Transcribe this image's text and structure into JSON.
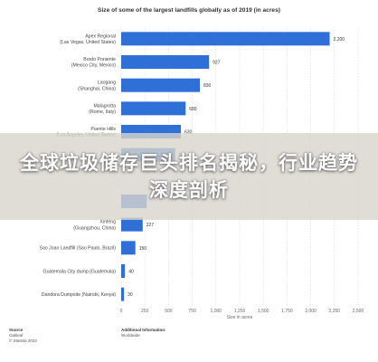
{
  "chart_data": {
    "type": "bar",
    "orientation": "horizontal",
    "title": "Size of some of the largest landfills globally as of 2019 (in acres)",
    "xlabel": "Size in acres",
    "xlim": [
      0,
      2500
    ],
    "xticks": [
      "0",
      "250",
      "500",
      "750",
      "1,000",
      "1,250",
      "1,500",
      "1,750",
      "2,000",
      "2,250",
      "2,500"
    ],
    "grid": true,
    "legend": "none",
    "bar_color": "#2f6fd8",
    "categories": [
      [
        "Apex Regional",
        "(Las Vegas, United States)"
      ],
      [
        "Bordo Poniente",
        "(Mexico City, Mexico)"
      ],
      [
        "Laogang",
        "(Shanghai, China)"
      ],
      [
        "Malagrotta",
        "(Rome, Italy)"
      ],
      [
        "Puente Hills",
        "(Los Angeles, United States)"
      ],
      [],
      [],
      [],
      [
        "Xinfeng",
        "(Guangzhou, China)"
      ],
      [
        "Sao Joao Landfill (Sao Paulo, Brazil)"
      ],
      [
        "Guatemala City dump (Guatemala)"
      ],
      [
        "Dandora Dumpsite (Nairobi, Kenya)"
      ]
    ],
    "values": [
      2200,
      927,
      830,
      680,
      630,
      570,
      null,
      270,
      227,
      150,
      40,
      30
    ],
    "value_labels": [
      "2,200",
      "927",
      "830",
      "680",
      "630",
      "570",
      "",
      "",
      "227",
      "150",
      "40",
      "30"
    ]
  },
  "footer": {
    "source_heading": "Source",
    "source_lines": [
      "Oakleaf",
      "© Statista 2022"
    ],
    "info_heading": "Additional Information:",
    "info_lines": [
      "Worldwide"
    ]
  },
  "banner": {
    "text": "全球垃圾储存巨头排名揭秘，行业趋势深度剖析"
  },
  "colors": {
    "bar": "#2f6fd8",
    "grid": "#d9d9d9",
    "banner": "#d8d4cc"
  }
}
